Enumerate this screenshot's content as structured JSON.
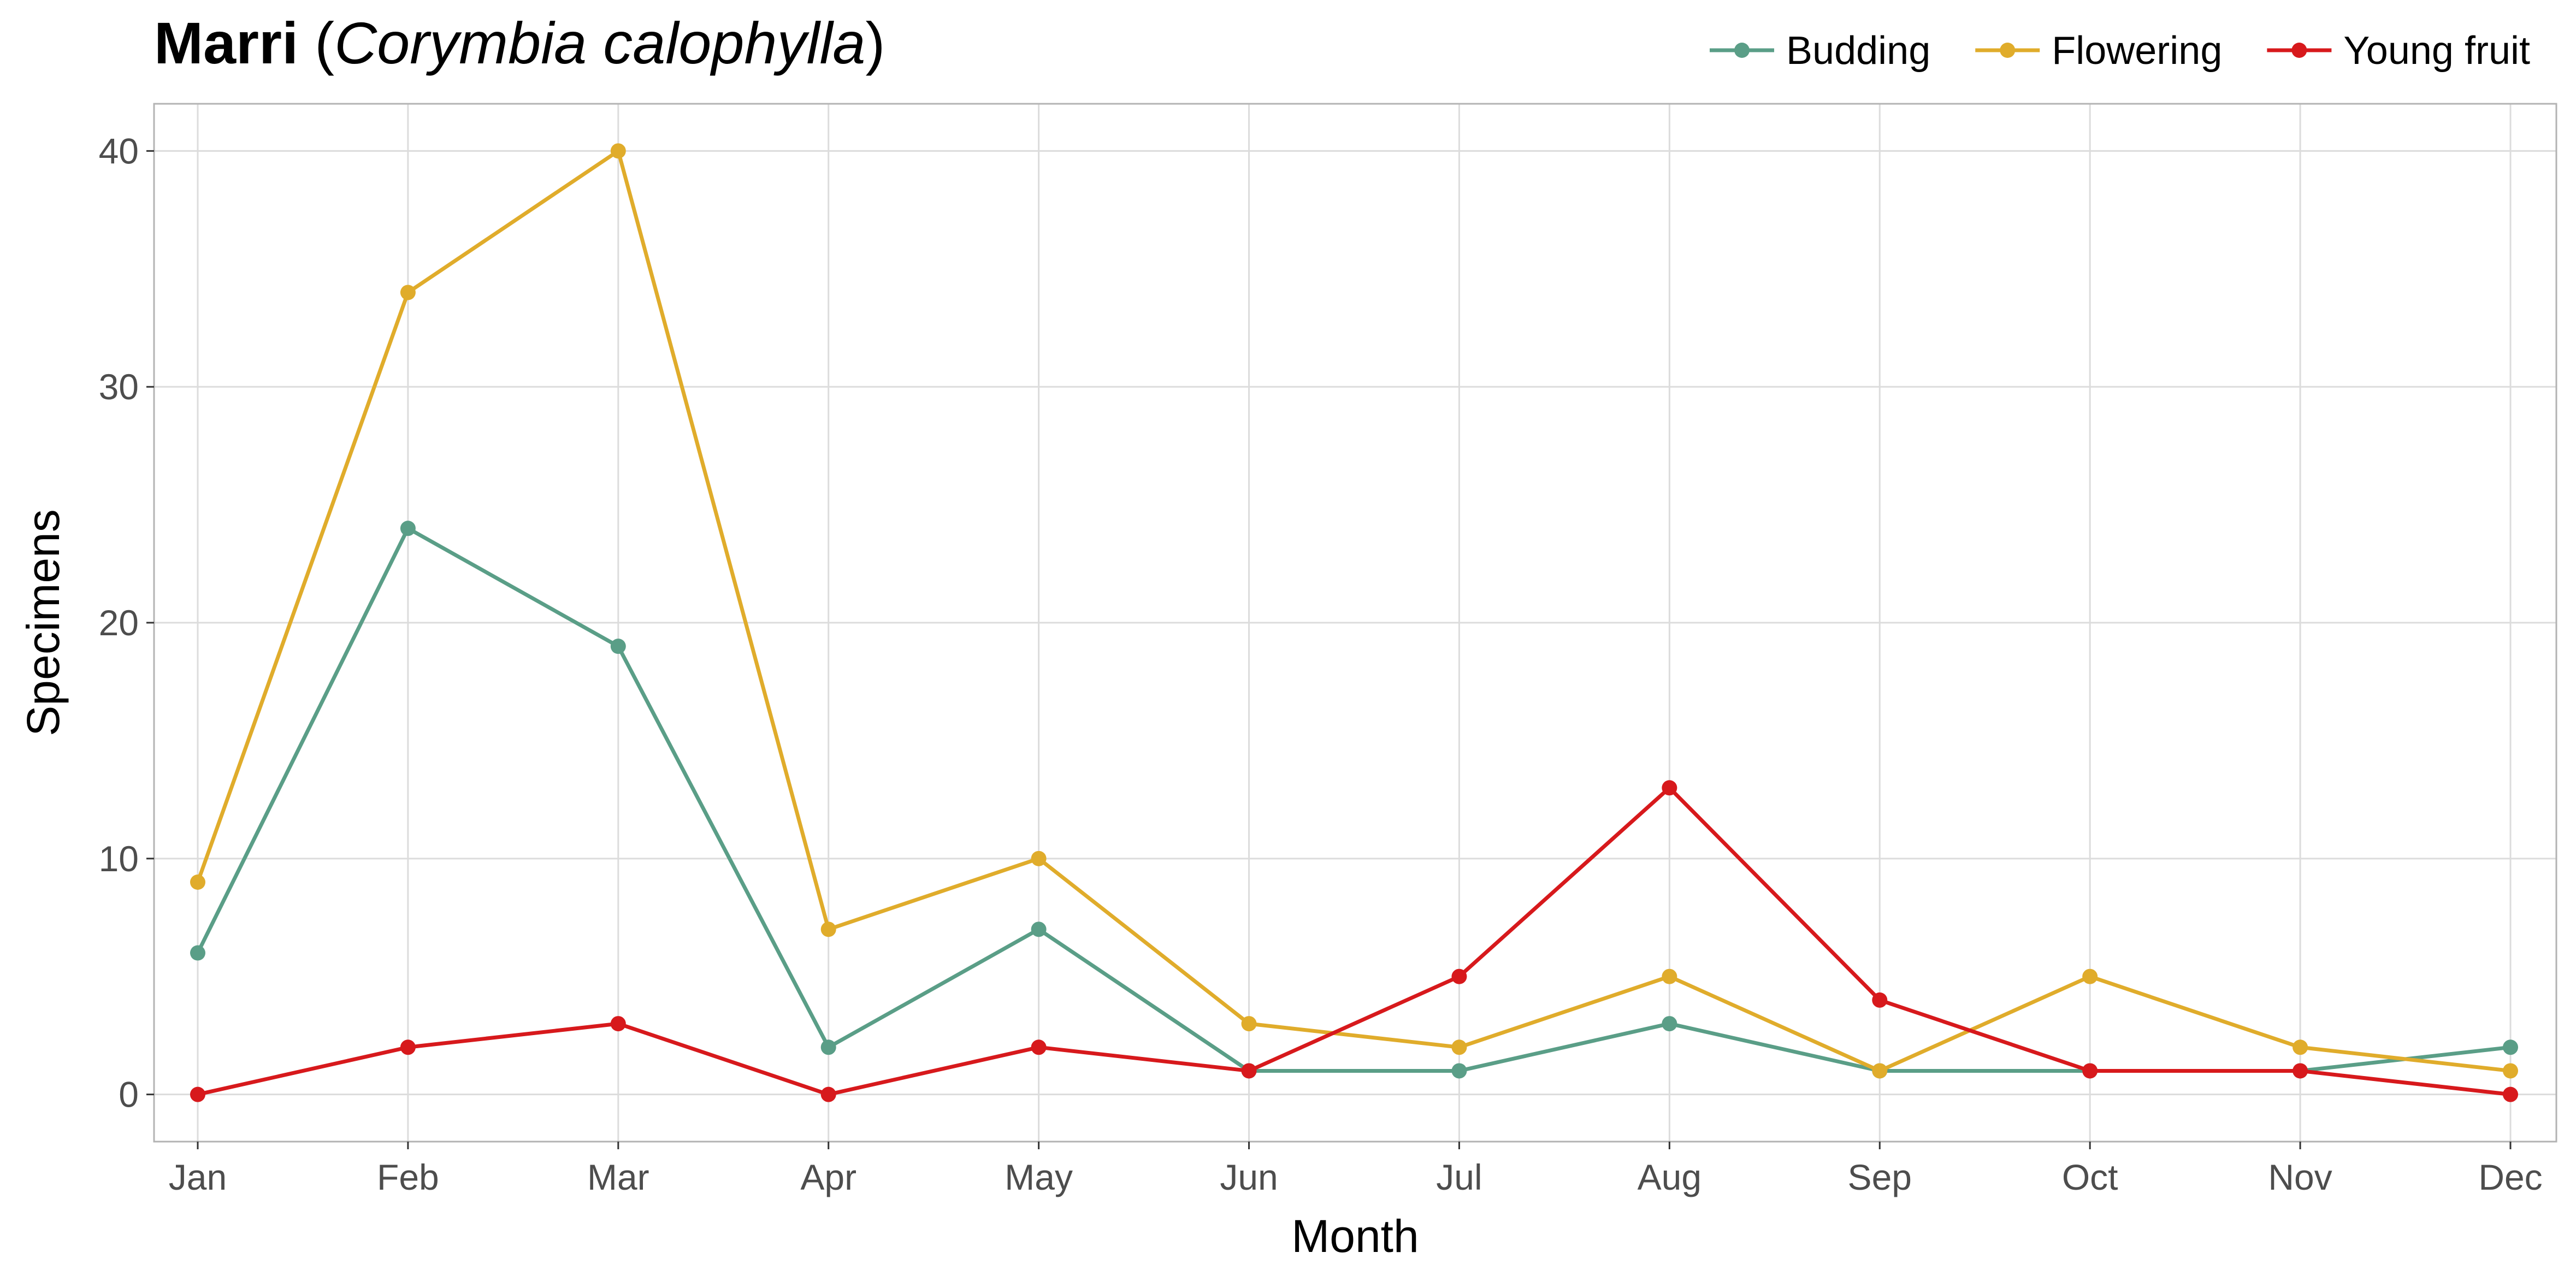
{
  "chart_data": {
    "type": "line",
    "title": {
      "bold": "Marri",
      "open": " (",
      "italic": "Corymbia calophylla",
      "close": ")"
    },
    "xlabel": "Month",
    "ylabel": "Specimens",
    "categories": [
      "Jan",
      "Feb",
      "Mar",
      "Apr",
      "May",
      "Jun",
      "Jul",
      "Aug",
      "Sep",
      "Oct",
      "Nov",
      "Dec"
    ],
    "ylim": [
      -2,
      42
    ],
    "yticks": [
      0,
      10,
      20,
      30,
      40
    ],
    "grid": true,
    "legend_position": "top-right",
    "series": [
      {
        "name": "Budding",
        "color": "#5a9e87",
        "values": [
          6,
          24,
          19,
          2,
          7,
          1,
          1,
          3,
          1,
          1,
          1,
          2
        ]
      },
      {
        "name": "Flowering",
        "color": "#e0ac2b",
        "values": [
          9,
          34,
          40,
          7,
          10,
          3,
          2,
          5,
          1,
          5,
          2,
          1
        ]
      },
      {
        "name": "Young fruit",
        "color": "#d7191c",
        "values": [
          0,
          2,
          3,
          0,
          2,
          1,
          5,
          13,
          4,
          1,
          1,
          0
        ]
      }
    ]
  }
}
